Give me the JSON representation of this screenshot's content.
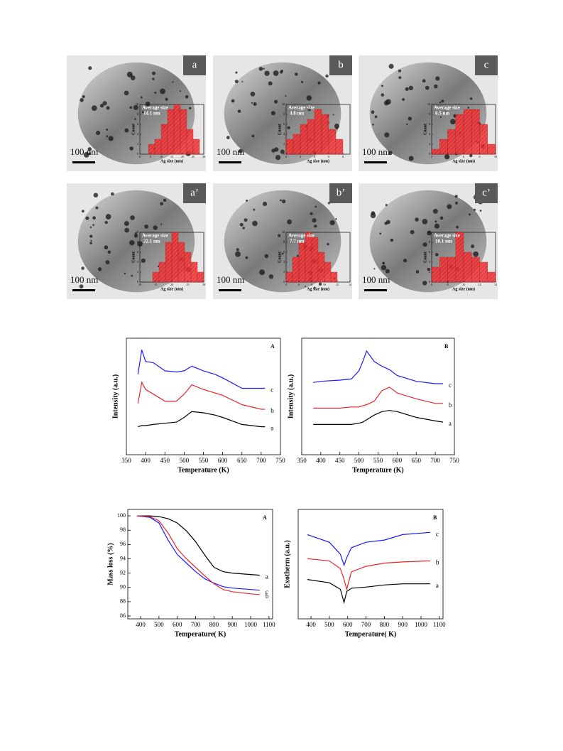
{
  "panels": [
    {
      "label": "a",
      "scale": "100 nm",
      "inset": {
        "title": "Average size",
        "size": "14.1 nm",
        "ylabel": "Count",
        "xlabel": "Ag size (nm)",
        "bins": [
          4,
          7,
          10,
          13,
          16,
          19,
          22,
          25,
          28
        ],
        "values": [
          2,
          3,
          6,
          9,
          10,
          9,
          5,
          3
        ],
        "ylim": [
          0,
          10
        ],
        "yticks": [
          0,
          2,
          4,
          6,
          8,
          10
        ],
        "xlim": [
          0,
          30
        ],
        "xticks": [
          0,
          5,
          10,
          15,
          20,
          25,
          30
        ]
      }
    },
    {
      "label": "b",
      "scale": "100 nm",
      "inset": {
        "title": "Average size",
        "size": "4.8 nm",
        "ylabel": "Count",
        "xlabel": "Ag size (nm)",
        "bins": [
          0,
          1,
          2,
          3,
          4,
          5,
          6,
          7,
          8
        ],
        "values": [
          3,
          4,
          6,
          7,
          9,
          8,
          5,
          3
        ],
        "ylim": [
          0,
          10
        ],
        "yticks": [
          0,
          2,
          4,
          6,
          8,
          10
        ],
        "xlim": [
          0,
          9
        ],
        "xticks": [
          0,
          2,
          4,
          6,
          8
        ]
      }
    },
    {
      "label": "c",
      "scale": "100 nm",
      "inset": {
        "title": "Average size",
        "size": "6.5 nm",
        "ylabel": "Count",
        "xlabel": "Ag size (nm)",
        "bins": [
          2,
          3,
          4,
          5,
          6,
          7,
          8,
          9,
          10
        ],
        "values": [
          1,
          3,
          5,
          8,
          9,
          9,
          6,
          2
        ],
        "ylim": [
          0,
          10
        ],
        "yticks": [
          0,
          2,
          4,
          6,
          8,
          10
        ],
        "xlim": [
          2,
          10
        ],
        "xticks": [
          2,
          4,
          6,
          8,
          10
        ]
      }
    },
    {
      "label": "a’",
      "scale": "100 nm",
      "inset": {
        "title": "Average size",
        "size": "22.1 nm",
        "ylabel": "Count",
        "xlabel": "Ag size (nm)",
        "bins": [
          14,
          16,
          18,
          20,
          22,
          24,
          26,
          28,
          30
        ],
        "values": [
          2,
          4,
          8,
          10,
          8,
          6,
          4,
          2
        ],
        "ylim": [
          0,
          10
        ],
        "yticks": [
          0,
          2,
          4,
          6,
          8,
          10
        ],
        "xlim": [
          10,
          30
        ],
        "xticks": [
          10,
          15,
          20,
          25,
          30
        ]
      }
    },
    {
      "label": "b’",
      "scale": "100 nm",
      "inset": {
        "title": "Average size",
        "size": "7.7 nm",
        "ylabel": "Count",
        "xlabel": "Ag size (nm)",
        "bins": [
          4,
          5,
          6,
          7,
          8,
          9,
          10,
          11,
          12
        ],
        "values": [
          2,
          5,
          8,
          10,
          9,
          6,
          4,
          2
        ],
        "ylim": [
          0,
          10
        ],
        "yticks": [
          0,
          2,
          4,
          6,
          8,
          10
        ],
        "xlim": [
          4,
          14
        ],
        "xticks": [
          4,
          6,
          8,
          10,
          12,
          14
        ]
      }
    },
    {
      "label": "c’",
      "scale": "100 nm",
      "inset": {
        "title": "Average size",
        "size": "10.1 nm",
        "ylabel": "Count",
        "xlabel": "Ag size (nm)",
        "bins": [
          6,
          7,
          8,
          9,
          10,
          11,
          12,
          13,
          14
        ],
        "values": [
          3,
          5,
          5,
          10,
          6,
          5,
          4,
          2
        ],
        "ylim": [
          0,
          10
        ],
        "yticks": [
          0,
          2,
          4,
          6,
          8,
          10
        ],
        "xlim": [
          6,
          14
        ],
        "xticks": [
          6,
          8,
          10,
          12,
          14
        ]
      }
    }
  ],
  "chart_data": [
    {
      "type": "line",
      "panel_label": "A",
      "xlabel": "Temperature (K)",
      "ylabel": "Intensity (a.u.)",
      "x": [
        380,
        390,
        400,
        420,
        450,
        480,
        500,
        520,
        550,
        580,
        600,
        650,
        700,
        710
      ],
      "xlim": [
        350,
        750
      ],
      "xticks": [
        350,
        400,
        450,
        500,
        550,
        600,
        650,
        700,
        750
      ],
      "ylim": [
        0,
        10
      ],
      "series": [
        {
          "name": "c",
          "color": "#1a1aff",
          "values": [
            6.9,
            9.0,
            8.0,
            7.9,
            7.2,
            7.1,
            7.2,
            7.6,
            7.2,
            6.9,
            6.6,
            5.7,
            5.7,
            5.7
          ]
        },
        {
          "name": "b",
          "color": "#e8262a",
          "values": [
            4.4,
            6.2,
            5.6,
            5.2,
            4.6,
            4.6,
            5.2,
            6.0,
            5.6,
            5.3,
            5.1,
            4.3,
            3.9,
            3.9
          ]
        },
        {
          "name": "a",
          "color": "#000000",
          "values": [
            2.4,
            2.5,
            2.5,
            2.6,
            2.7,
            2.8,
            3.2,
            3.7,
            3.6,
            3.4,
            3.2,
            2.6,
            2.4,
            2.4
          ]
        }
      ]
    },
    {
      "type": "line",
      "panel_label": "B",
      "xlabel": "Temperature (K)",
      "ylabel": "Intensity (a.u.)",
      "x": [
        380,
        400,
        450,
        480,
        500,
        510,
        520,
        540,
        560,
        580,
        600,
        650,
        700,
        720
      ],
      "xlim": [
        350,
        750
      ],
      "xticks": [
        350,
        400,
        450,
        500,
        550,
        600,
        650,
        700,
        750
      ],
      "ylim": [
        0,
        10
      ],
      "series": [
        {
          "name": "c",
          "color": "#1a1aff",
          "values": [
            6.2,
            6.3,
            6.4,
            6.5,
            7.2,
            8.0,
            8.9,
            8.0,
            7.6,
            7.3,
            6.8,
            6.3,
            6.1,
            6.1
          ]
        },
        {
          "name": "b",
          "color": "#e8262a",
          "values": [
            4.0,
            4.0,
            4.0,
            4.1,
            4.1,
            4.2,
            4.3,
            4.6,
            5.5,
            5.8,
            5.3,
            4.8,
            4.4,
            4.4
          ]
        },
        {
          "name": "a",
          "color": "#000000",
          "values": [
            2.6,
            2.6,
            2.6,
            2.6,
            2.7,
            2.8,
            3.0,
            3.4,
            3.7,
            3.8,
            3.7,
            3.2,
            2.9,
            2.8
          ]
        }
      ]
    },
    {
      "type": "line",
      "panel_label": "A",
      "xlabel": "Temperature( K)",
      "ylabel": "Mass loss (%)",
      "x": [
        380,
        450,
        500,
        550,
        600,
        650,
        700,
        750,
        800,
        850,
        900,
        1000,
        1050
      ],
      "xlim": [
        330,
        1120
      ],
      "xticks": [
        400,
        500,
        600,
        700,
        800,
        900,
        1000,
        1100
      ],
      "ylim": [
        85.6,
        100.9
      ],
      "yticks": [
        86,
        88,
        90,
        92,
        94,
        96,
        98,
        100
      ],
      "series": [
        {
          "name": "a",
          "color": "#000000",
          "values": [
            100,
            100,
            99.9,
            99.6,
            99.0,
            97.9,
            96.4,
            94.5,
            92.8,
            92.2,
            92.0,
            91.8,
            91.7
          ]
        },
        {
          "name": "c",
          "color": "#1a1aff",
          "values": [
            100,
            99.8,
            99.0,
            96.6,
            94.6,
            93.4,
            92.2,
            91.2,
            90.6,
            90.1,
            89.9,
            89.7,
            89.6
          ]
        },
        {
          "name": "b",
          "color": "#e8262a",
          "values": [
            100,
            99.9,
            99.3,
            97.6,
            95.4,
            94.0,
            92.8,
            91.6,
            90.5,
            89.7,
            89.4,
            89.1,
            89.0
          ]
        }
      ]
    },
    {
      "type": "line",
      "panel_label": "B",
      "xlabel": "Temperature( K)",
      "ylabel": "Exotherm (a.u.)",
      "x": [
        380,
        500,
        560,
        580,
        595,
        620,
        700,
        800,
        900,
        1050
      ],
      "xlim": [
        330,
        1120
      ],
      "xticks": [
        400,
        500,
        600,
        700,
        800,
        900,
        1000,
        1100
      ],
      "ylim": [
        0,
        10
      ],
      "series": [
        {
          "name": "c",
          "color": "#1a1aff",
          "values": [
            7.7,
            7.0,
            5.9,
            4.9,
            5.6,
            6.5,
            7.0,
            7.2,
            7.7,
            7.9
          ]
        },
        {
          "name": "b",
          "color": "#e8262a",
          "values": [
            5.5,
            5.3,
            4.6,
            3.6,
            2.7,
            4.3,
            4.8,
            5.1,
            5.2,
            5.3
          ]
        },
        {
          "name": "a",
          "color": "#000000",
          "values": [
            3.6,
            3.3,
            2.7,
            1.5,
            2.5,
            2.8,
            2.9,
            3.1,
            3.2,
            3.2
          ]
        }
      ]
    }
  ]
}
